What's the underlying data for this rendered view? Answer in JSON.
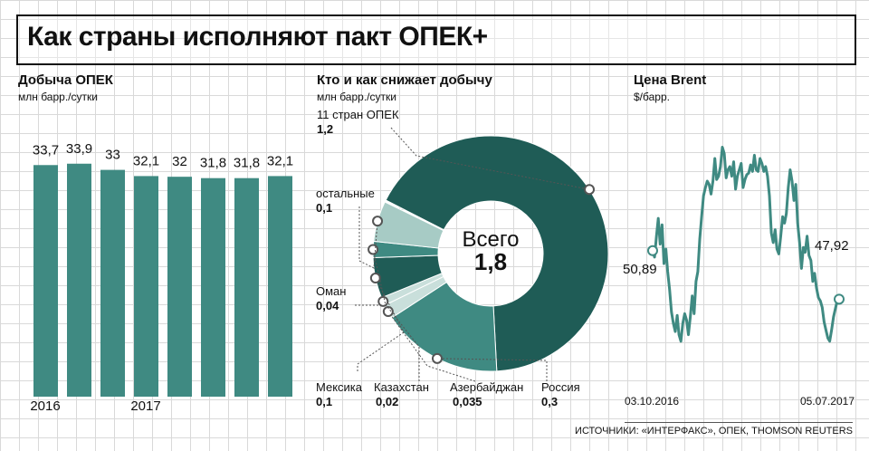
{
  "title": "Как страны исполняют пакт ОПЕК+",
  "source": "ИСТОЧНИКИ: «ИНТЕРФАКС», ОПЕК, THOMSON REUTERS",
  "colors": {
    "dark": "#1f5c56",
    "mid": "#3f8a82",
    "light": "#a7cbc5",
    "lighter": "#c9dfdb"
  },
  "chart_data": [
    {
      "type": "bar",
      "title": "Добыча ОПЕК",
      "ylabel": "млн барр./сутки",
      "year_labels": [
        "2016",
        "2017"
      ],
      "values": [
        33.7,
        33.9,
        33,
        32.1,
        32,
        31.8,
        31.8,
        32.1
      ],
      "value_labels": [
        "33,7",
        "33,9",
        "33",
        "32,1",
        "32",
        "31,8",
        "31,8",
        "32,1"
      ],
      "ylim": [
        0,
        34
      ]
    },
    {
      "type": "pie",
      "title": "Кто и как снижает добычу",
      "ylabel": "млн барр./сутки",
      "center_label": "Всего",
      "center_value": "1,8",
      "total": 1.8,
      "slices": [
        {
          "name": "11 стран ОПЕК",
          "value": 1.2,
          "label": "1,2",
          "shade": "dark"
        },
        {
          "name": "Россия",
          "value": 0.3,
          "label": "0,3",
          "shade": "mid"
        },
        {
          "name": "Азербайджан",
          "value": 0.035,
          "label": "0,035",
          "shade": "lighter"
        },
        {
          "name": "Казахстан",
          "value": 0.02,
          "label": "0,02",
          "shade": "lighter"
        },
        {
          "name": "Мексика",
          "value": 0.1,
          "label": "0,1",
          "shade": "dark"
        },
        {
          "name": "Оман",
          "value": 0.04,
          "label": "0,04",
          "shade": "mid"
        },
        {
          "name": "остальные",
          "value": 0.1,
          "label": "0,1",
          "shade": "light"
        }
      ]
    },
    {
      "type": "line",
      "title": "Цена Brent",
      "ylabel": "$/барр.",
      "x_labels": [
        "03.10.2016",
        "05.07.2017"
      ],
      "start_label": "50,89",
      "end_label": "47,92",
      "ylim": [
        44,
        58
      ],
      "values": [
        50.9,
        50.5,
        51.8,
        52.9,
        51.3,
        52.5,
        50.1,
        51.0,
        49.6,
        48.5,
        47.1,
        46.4,
        45.9,
        46.9,
        45.7,
        45.3,
        46.4,
        47.0,
        46.6,
        45.7,
        46.8,
        48.1,
        47.0,
        49.0,
        49.6,
        51.6,
        53.0,
        54.3,
        54.8,
        55.2,
        55.0,
        54.4,
        55.2,
        56.6,
        55.3,
        55.5,
        56.1,
        57.3,
        56.9,
        55.4,
        55.9,
        56.1,
        55.5,
        56.4,
        54.7,
        55.5,
        55.9,
        56.3,
        54.8,
        55.3,
        55.6,
        55.7,
        56.2,
        55.8,
        56.8,
        55.9,
        55.8,
        56.6,
        56.3,
        55.8,
        56.1,
        55.5,
        54.3,
        52.0,
        51.4,
        52.2,
        51.0,
        50.7,
        51.8,
        53.0,
        52.6,
        53.2,
        54.8,
        55.9,
        55.2,
        54.0,
        55.0,
        52.6,
        51.4,
        49.8,
        51.1,
        50.8,
        51.8,
        50.6,
        50.3,
        49.0,
        49.5,
        48.6,
        48.0,
        47.8,
        47.4,
        46.5,
        46.0,
        45.5,
        45.3,
        46.0,
        46.8,
        47.3,
        47.8,
        47.9
      ]
    }
  ]
}
